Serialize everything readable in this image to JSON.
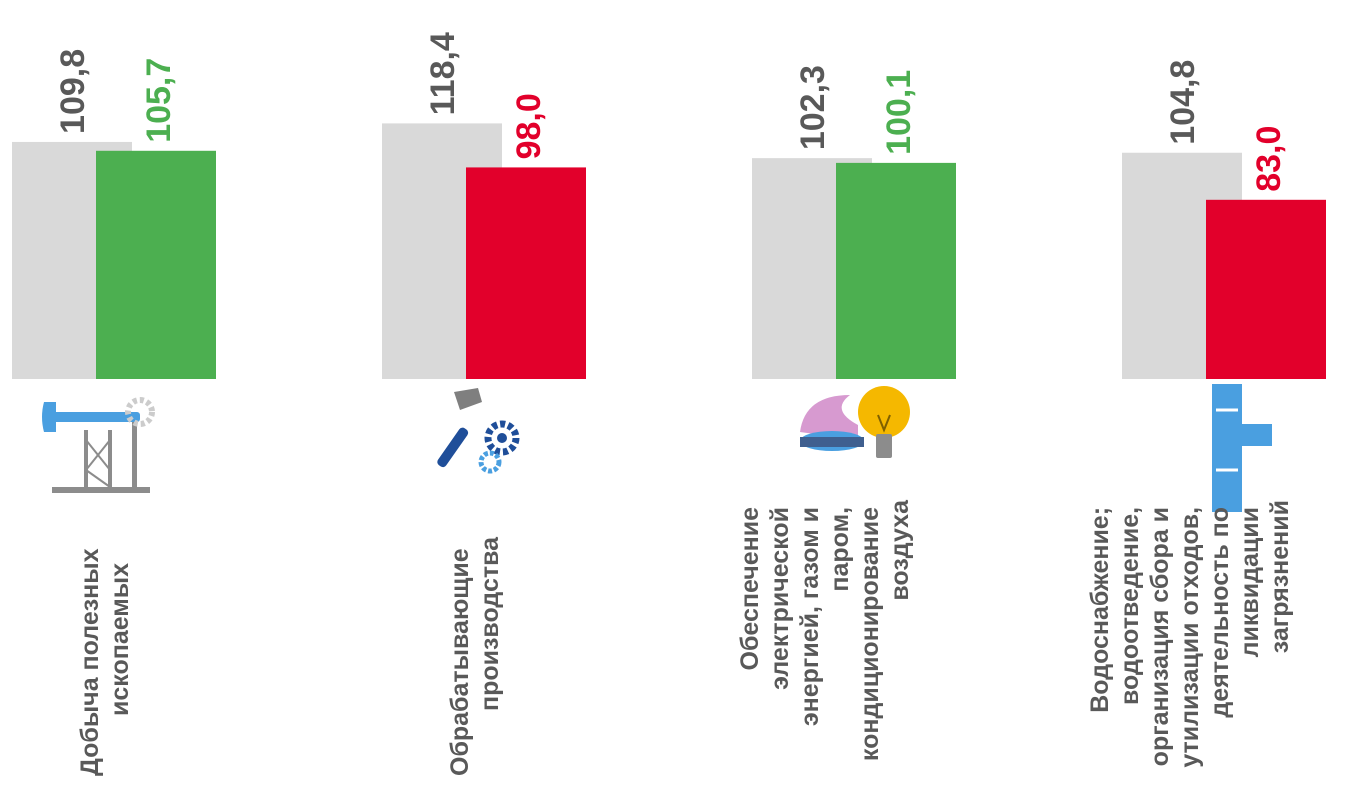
{
  "chart_data": {
    "type": "bar",
    "categories": [
      "Добыча полезных ископаемых",
      "Обрабатывающие производства",
      "Обеспечение электрической энергией, газом и паром, кондиционирование воздуха",
      "Водоснабжение; водоотведение, организация сбора и утилизации отходов, деятельность по ликвидации загрязнений"
    ],
    "category_lines": [
      [
        "Добыча полезных",
        "ископаемых"
      ],
      [
        "Обрабатывающие",
        "производства"
      ],
      [
        "Обеспечение",
        "электрической",
        "энергией, газом и",
        "паром,",
        "кондиционирование",
        "воздуха"
      ],
      [
        "Водоснабжение;",
        "водоотведение,",
        "организация сбора и",
        "утилизации отходов,",
        "деятельность по",
        "ликвидации",
        "загрязнений"
      ]
    ],
    "series": [
      {
        "values": [
          109.8,
          118.4,
          102.3,
          104.8
        ]
      },
      {
        "values": [
          105.7,
          98.0,
          100.1,
          83.0
        ]
      }
    ],
    "labels": [
      [
        "109,8",
        "118,4",
        "102,3",
        "104,8"
      ],
      [
        "105,7",
        "98,0",
        "100,1",
        "83,0"
      ]
    ],
    "ylim": [
      0,
      125
    ],
    "grid": false,
    "legend": "none",
    "colors": {
      "series1_bar": "#d9d9d9",
      "series1_label": "#595959",
      "above_100": "#4caf50",
      "below_100": "#e2002b",
      "category_text": "#595959"
    },
    "icons": [
      "oil-pump-icon",
      "hammer-gears-icon",
      "gas-burner-lightbulb-icon",
      "water-pipe-icon"
    ]
  }
}
